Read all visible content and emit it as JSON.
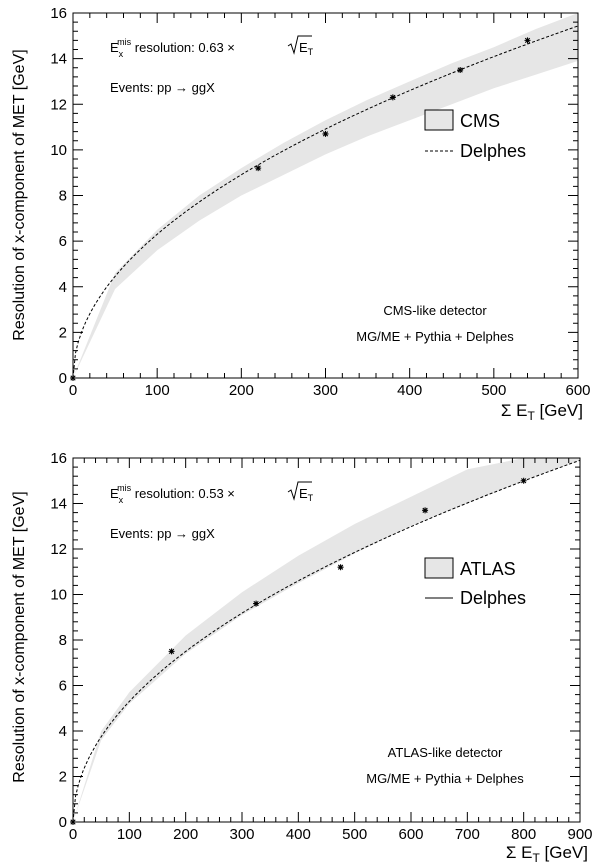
{
  "chart_data": [
    {
      "type": "scatter",
      "detector_label": "CMS",
      "ylabel": "Resolution of x-component  of MET [GeV]",
      "xlabel": {
        "main": "Σ E",
        "sub": "T",
        "unit": " [GeV]"
      },
      "xlim": [
        0,
        600
      ],
      "ylim": [
        0,
        16
      ],
      "xticks": [
        0,
        100,
        200,
        300,
        400,
        500,
        600
      ],
      "yticks": [
        0,
        2,
        4,
        6,
        8,
        10,
        12,
        14,
        16
      ],
      "annotations": {
        "resolution_prefix": "E",
        "resolution_sub": "x",
        "resolution_sup": "mis",
        "resolution_text": " resolution: 0.63 ×",
        "resolution_sqrt_main": "E",
        "resolution_sqrt_sub": "T",
        "events": "Events: pp → ggX",
        "detector": "CMS-like detector",
        "generator": "MG/ME + Pythia + Delphes"
      },
      "legend": {
        "placement": "right",
        "band_label": "CMS",
        "line_label": "Delphes"
      },
      "band": {
        "name": "CMS",
        "x": [
          0,
          50,
          100,
          150,
          200,
          250,
          300,
          350,
          400,
          450,
          500,
          550,
          600
        ],
        "lower": [
          0.0,
          3.9,
          5.6,
          6.9,
          8.0,
          8.9,
          9.8,
          10.6,
          11.3,
          12.0,
          12.7,
          13.3,
          13.9
        ],
        "upper": [
          0.0,
          4.6,
          6.5,
          8.0,
          9.2,
          10.3,
          11.3,
          12.2,
          13.0,
          13.8,
          14.5,
          15.3,
          16.0
        ]
      },
      "curve": {
        "name": "Delphes",
        "style": "dashed",
        "coefficient": 0.63
      },
      "points": {
        "x": [
          0,
          220,
          300,
          380,
          460,
          540
        ],
        "y": [
          0.0,
          9.2,
          10.7,
          12.3,
          13.5,
          14.8
        ]
      }
    },
    {
      "type": "scatter",
      "detector_label": "ATLAS",
      "ylabel": "Resolution of x-component  of MET [GeV]",
      "xlabel": {
        "main": "Σ E",
        "sub": "T",
        "unit": " [GeV]"
      },
      "xlim": [
        0,
        900
      ],
      "ylim": [
        0,
        16
      ],
      "xticks": [
        0,
        100,
        200,
        300,
        400,
        500,
        600,
        700,
        800,
        900
      ],
      "yticks": [
        0,
        2,
        4,
        6,
        8,
        10,
        12,
        14,
        16
      ],
      "annotations": {
        "resolution_prefix": "E",
        "resolution_sub": "x",
        "resolution_sup": "mis",
        "resolution_text": " resolution: 0.53 ×",
        "resolution_sqrt_main": "E",
        "resolution_sqrt_sub": "T",
        "events": "Events: pp → ggX",
        "detector": "ATLAS-like detector",
        "generator": "MG/ME + Pythia + Delphes"
      },
      "legend": {
        "placement": "right",
        "band_label": "ATLAS",
        "line_label": "Delphes"
      },
      "band": {
        "name": "ATLAS",
        "x": [
          0,
          50,
          100,
          200,
          300,
          400,
          500,
          600,
          700,
          800,
          900
        ],
        "lower": [
          0.0,
          3.6,
          5.2,
          7.4,
          9.1,
          10.5,
          11.8,
          13.0,
          14.0,
          15.0,
          15.9
        ],
        "upper": [
          0.0,
          4.0,
          5.7,
          8.2,
          10.1,
          11.7,
          13.1,
          14.3,
          15.5,
          16.0,
          16.0
        ]
      },
      "curve": {
        "name": "Delphes",
        "style": "dashed",
        "coefficient": 0.53
      },
      "points": {
        "x": [
          0,
          175,
          325,
          475,
          625,
          800
        ],
        "y": [
          0.0,
          7.5,
          9.6,
          11.2,
          13.7,
          15.0
        ]
      }
    }
  ]
}
